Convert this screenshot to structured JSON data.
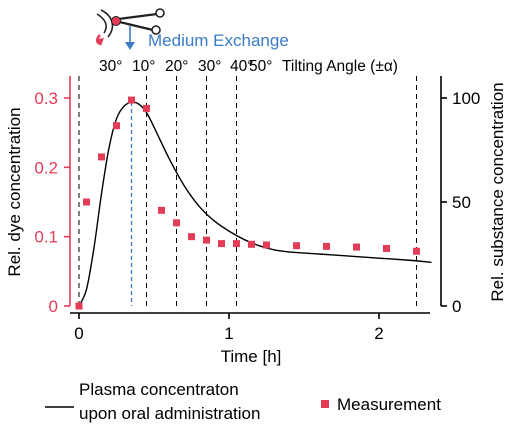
{
  "chart_data": {
    "type": "line",
    "xlabel": "Time [h]",
    "ylabel_left": "Rel. dye concentration",
    "ylabel_right": "Rel. substance concentration",
    "xlim": [
      0,
      2.35
    ],
    "ylim_left": [
      0,
      0.3
    ],
    "ylim_right": [
      0,
      100
    ],
    "x_ticks": [
      "0",
      "1",
      "2"
    ],
    "x_tick_values": [
      0,
      1,
      2
    ],
    "y_left_ticks": [
      "0",
      "0.1",
      "0.2",
      "0.3"
    ],
    "y_left_tick_values": [
      0,
      0.1,
      0.2,
      0.3
    ],
    "y_right_ticks": [
      "0",
      "50",
      "100"
    ],
    "y_right_tick_values": [
      0,
      50,
      100
    ],
    "top_annotation": {
      "label": "Medium Exchange",
      "x": 0.35,
      "color": "#3a7cc4"
    },
    "tilt_labels": [
      "30°",
      "10°",
      "20°",
      "30°",
      "40°",
      "50°",
      "Tilting Angle (±α)"
    ],
    "tilt_event_times": [
      0,
      0.45,
      0.65,
      0.85,
      1.05,
      2.25
    ],
    "series": [
      {
        "name": "Plasma concentraton upon oral administration",
        "name_lines": [
          "Plasma concentraton",
          "upon oral administration"
        ],
        "axis": "right",
        "style": "line",
        "color": "#000000",
        "x": [
          0,
          0.05,
          0.1,
          0.15,
          0.2,
          0.25,
          0.3,
          0.35,
          0.4,
          0.45,
          0.5,
          0.6,
          0.7,
          0.8,
          0.9,
          1.0,
          1.1,
          1.2,
          1.3,
          1.4,
          1.6,
          1.8,
          2.0,
          2.2,
          2.35
        ],
        "y": [
          0,
          8,
          28,
          54,
          76,
          90,
          96,
          98,
          97,
          93,
          86,
          71,
          58,
          48,
          41,
          36,
          32,
          29,
          27,
          26,
          25,
          24,
          23,
          22,
          21
        ]
      },
      {
        "name": "Measurement",
        "axis": "left",
        "style": "marker",
        "color": "#e23c57",
        "x": [
          0,
          0.05,
          0.15,
          0.25,
          0.35,
          0.45,
          0.55,
          0.65,
          0.75,
          0.85,
          0.95,
          1.05,
          1.15,
          1.25,
          1.45,
          1.65,
          1.85,
          2.05,
          2.25
        ],
        "y": [
          0,
          0.15,
          0.215,
          0.26,
          0.297,
          0.285,
          0.138,
          0.12,
          0.1,
          0.095,
          0.09,
          0.09,
          0.089,
          0.088,
          0.087,
          0.086,
          0.085,
          0.083,
          0.079
        ]
      }
    ],
    "colors": {
      "left_axis": "#e23c57",
      "right_axis": "#000000",
      "annotation_line": "#3a7cc4"
    }
  }
}
